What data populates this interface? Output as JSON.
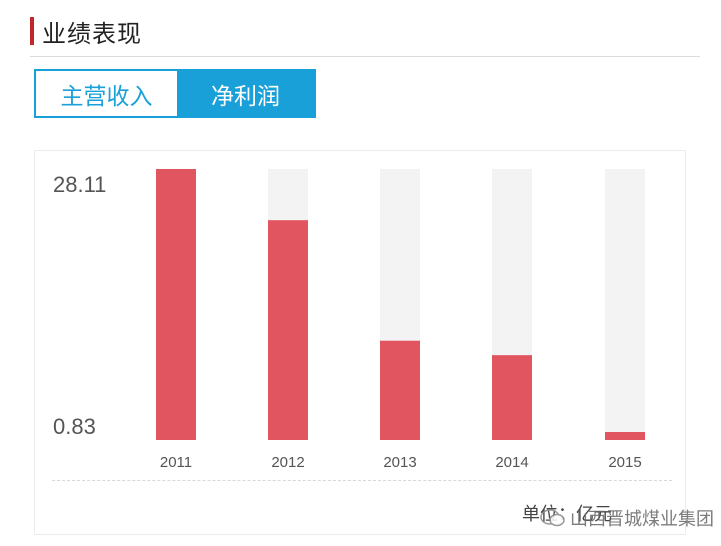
{
  "header": {
    "title": "业绩表现"
  },
  "tabs": [
    {
      "label": "主营收入",
      "active": false
    },
    {
      "label": "净利润",
      "active": true
    }
  ],
  "colors": {
    "accent": "#1aa0d8",
    "bar": "#e05560",
    "bar_track": "#f4f3f4",
    "header_mark": "#c0272d"
  },
  "chart_data": {
    "type": "bar",
    "categories": [
      "2011",
      "2012",
      "2013",
      "2014",
      "2015"
    ],
    "values": [
      28.11,
      22.8,
      10.3,
      8.8,
      0.83
    ],
    "ylim": [
      0,
      28.11
    ],
    "y_tick_labels": [
      "28.11",
      "0.83"
    ],
    "grid": false,
    "legend": "none"
  },
  "footer": {
    "unit": "单位：亿元",
    "watermark": "山西晋城煤业集团"
  }
}
